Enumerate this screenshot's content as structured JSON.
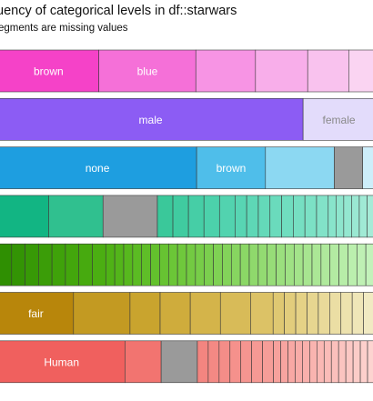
{
  "title": "uency of categorical levels in df::starwars",
  "subtitle": "egments are missing values",
  "chart_data": {
    "type": "bar",
    "orientation": "horizontal-stacked-proportion",
    "rows": [
      {
        "label_color": "#ffffff",
        "segments": [
          {
            "label": "brown",
            "share": 27,
            "color": "#f542c8"
          },
          {
            "label": "blue",
            "share": 26,
            "color": "#f570d8"
          },
          {
            "share": 16,
            "color": "#f794e4"
          },
          {
            "share": 14,
            "color": "#f8aeea"
          },
          {
            "share": 11,
            "color": "#f9c2ee"
          },
          {
            "share": 7,
            "color": "#fad4f2"
          }
        ]
      },
      {
        "label_color": "#ffffff",
        "segments": [
          {
            "label": "male",
            "share": 85,
            "color": "#8c5cf4"
          },
          {
            "label": "female",
            "share": 20,
            "color": "#e3dcfb",
            "label_color": "#8a8a8a"
          }
        ]
      },
      {
        "label_color": "#ffffff",
        "segments": [
          {
            "label": "none",
            "share": 49,
            "color": "#1e9ee0"
          },
          {
            "label": "brown",
            "share": 17,
            "color": "#4fbeea"
          },
          {
            "share": 17,
            "color": "#8cd8f2"
          },
          {
            "share": 7,
            "color": "#9a9a9a",
            "missing": true
          },
          {
            "share": 3,
            "color": "#cdeefa"
          }
        ]
      },
      {
        "segments": [
          {
            "share": 13,
            "color": "#12b583"
          },
          {
            "share": 14,
            "color": "#30c08f"
          },
          {
            "share": 14,
            "color": "#9a9a9a",
            "missing": true
          },
          {
            "share": 4,
            "color": "#3ac89a"
          },
          {
            "share": 4,
            "color": "#40cba0"
          },
          {
            "share": 4,
            "color": "#46cea6"
          },
          {
            "share": 4,
            "color": "#4cd1ab"
          },
          {
            "share": 4,
            "color": "#52d3af"
          },
          {
            "share": 3,
            "color": "#58d5b3"
          },
          {
            "share": 3,
            "color": "#5ed7b6"
          },
          {
            "share": 3,
            "color": "#64d9b9"
          },
          {
            "share": 3,
            "color": "#6adbbc"
          },
          {
            "share": 3,
            "color": "#70ddbf"
          },
          {
            "share": 3,
            "color": "#76dfc2"
          },
          {
            "share": 3,
            "color": "#7ce1c5"
          },
          {
            "share": 3,
            "color": "#82e2c8"
          },
          {
            "share": 2,
            "color": "#88e4cb"
          },
          {
            "share": 2,
            "color": "#8ee5cd"
          },
          {
            "share": 2,
            "color": "#94e7d0"
          },
          {
            "share": 2,
            "color": "#9ae8d2"
          },
          {
            "share": 2,
            "color": "#a0ead5"
          },
          {
            "share": 2,
            "color": "#a6ebd7"
          }
        ]
      },
      {
        "segments": [
          {
            "share": 3,
            "color": "#2f8f02"
          },
          {
            "share": 3,
            "color": "#339404"
          },
          {
            "share": 3,
            "color": "#379906"
          },
          {
            "share": 3,
            "color": "#3b9d08"
          },
          {
            "share": 3,
            "color": "#3fa20a"
          },
          {
            "share": 3,
            "color": "#43a60c"
          },
          {
            "share": 3,
            "color": "#47aa0f"
          },
          {
            "share": 3,
            "color": "#4bae12"
          },
          {
            "share": 2,
            "color": "#4fb216"
          },
          {
            "share": 2,
            "color": "#53b51a"
          },
          {
            "share": 2,
            "color": "#57b81e"
          },
          {
            "share": 2,
            "color": "#5bbb23"
          },
          {
            "share": 2,
            "color": "#5fbe28"
          },
          {
            "share": 2,
            "color": "#63c12d"
          },
          {
            "share": 2,
            "color": "#67c332"
          },
          {
            "share": 2,
            "color": "#6bc637"
          },
          {
            "share": 2,
            "color": "#6fc83c"
          },
          {
            "share": 2,
            "color": "#73ca42"
          },
          {
            "share": 2,
            "color": "#77cd48"
          },
          {
            "share": 2,
            "color": "#7bcf4e"
          },
          {
            "share": 2,
            "color": "#7fd154"
          },
          {
            "share": 2,
            "color": "#83d35a"
          },
          {
            "share": 2,
            "color": "#87d560"
          },
          {
            "share": 2,
            "color": "#8bd766"
          },
          {
            "share": 2,
            "color": "#8fd96c"
          },
          {
            "share": 2,
            "color": "#93db72"
          },
          {
            "share": 2,
            "color": "#97dd78"
          },
          {
            "share": 2,
            "color": "#9bdf7e"
          },
          {
            "share": 2,
            "color": "#9fe184"
          },
          {
            "share": 2,
            "color": "#a3e38a"
          },
          {
            "share": 2,
            "color": "#a7e590"
          },
          {
            "share": 2,
            "color": "#abe796"
          },
          {
            "share": 2,
            "color": "#afe99c"
          },
          {
            "share": 2,
            "color": "#b3eba2"
          },
          {
            "share": 2,
            "color": "#b7eda8"
          },
          {
            "share": 2,
            "color": "#bbefae"
          },
          {
            "share": 2,
            "color": "#bff0b4"
          },
          {
            "share": 2,
            "color": "#c3f2ba"
          }
        ]
      },
      {
        "label_color": "#ffffff",
        "segments": [
          {
            "label": "fair",
            "share": 20,
            "color": "#b8860b"
          },
          {
            "share": 15,
            "color": "#c39a22"
          },
          {
            "share": 8,
            "color": "#c9a42e"
          },
          {
            "share": 8,
            "color": "#cfac3c"
          },
          {
            "share": 8,
            "color": "#d4b44a"
          },
          {
            "share": 8,
            "color": "#d8bb58"
          },
          {
            "share": 6,
            "color": "#dcc266"
          },
          {
            "share": 3,
            "color": "#dfc872"
          },
          {
            "share": 3,
            "color": "#e2cd7c"
          },
          {
            "share": 3,
            "color": "#e5d286"
          },
          {
            "share": 3,
            "color": "#e7d690"
          },
          {
            "share": 3,
            "color": "#e9da9a"
          },
          {
            "share": 3,
            "color": "#ebdea4"
          },
          {
            "share": 3,
            "color": "#ede2ae"
          },
          {
            "share": 3,
            "color": "#efe6b8"
          },
          {
            "share": 3,
            "color": "#f1eac2"
          }
        ]
      },
      {
        "label_color": "#ffffff",
        "segments": [
          {
            "label": "Human",
            "share": 35,
            "color": "#f0605e"
          },
          {
            "share": 10,
            "color": "#f27470"
          },
          {
            "share": 10,
            "color": "#9a9a9a",
            "missing": true
          },
          {
            "share": 3,
            "color": "#f38580"
          },
          {
            "share": 3,
            "color": "#f48984"
          },
          {
            "share": 3,
            "color": "#f48d88"
          },
          {
            "share": 3,
            "color": "#f5918c"
          },
          {
            "share": 3,
            "color": "#f59590"
          },
          {
            "share": 3,
            "color": "#f69994"
          },
          {
            "share": 3,
            "color": "#f69d98"
          },
          {
            "share": 2,
            "color": "#f7a19c"
          },
          {
            "share": 2,
            "color": "#f7a4a0"
          },
          {
            "share": 2,
            "color": "#f8a8a4"
          },
          {
            "share": 2,
            "color": "#f8aca8"
          },
          {
            "share": 2,
            "color": "#f9b0ac"
          },
          {
            "share": 2,
            "color": "#f9b4b0"
          },
          {
            "share": 2,
            "color": "#fab8b4"
          },
          {
            "share": 2,
            "color": "#fabcb8"
          },
          {
            "share": 2,
            "color": "#fbc0bc"
          },
          {
            "share": 2,
            "color": "#fbc4c0"
          },
          {
            "share": 2,
            "color": "#fcc8c4"
          },
          {
            "share": 2,
            "color": "#fcccc8"
          },
          {
            "share": 2,
            "color": "#fdd0cc"
          },
          {
            "share": 2,
            "color": "#fdd4d0"
          }
        ]
      }
    ]
  }
}
